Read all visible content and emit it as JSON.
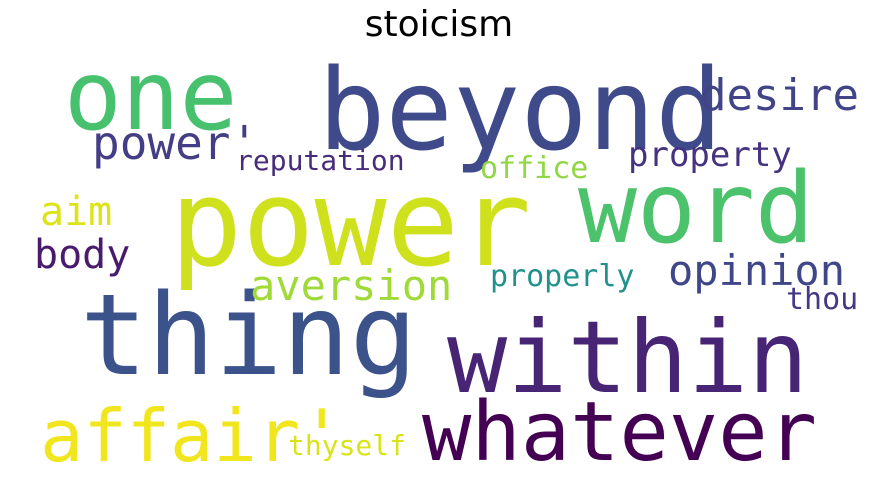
{
  "title": "stoicism",
  "words": [
    {
      "text": "power",
      "color": "#cfe11c"
    },
    {
      "text": "word",
      "color": "#4cc26c"
    },
    {
      "text": "beyond",
      "color": "#3e4a89"
    },
    {
      "text": "one",
      "color": "#47c16e"
    },
    {
      "text": "thing",
      "color": "#3b528b"
    },
    {
      "text": "within",
      "color": "#482475"
    },
    {
      "text": "whatever",
      "color": "#440154"
    },
    {
      "text": "affair'",
      "color": "#f1e51d"
    },
    {
      "text": "desire",
      "color": "#414487"
    },
    {
      "text": "power'",
      "color": "#433e85"
    },
    {
      "text": "reputation",
      "color": "#472c7a"
    },
    {
      "text": "property",
      "color": "#46337f"
    },
    {
      "text": "office",
      "color": "#8fd744"
    },
    {
      "text": "aim",
      "color": "#dde318"
    },
    {
      "text": "body",
      "color": "#481b6d"
    },
    {
      "text": "aversion",
      "color": "#a0da39"
    },
    {
      "text": "opinion",
      "color": "#3f4788"
    },
    {
      "text": "properly",
      "color": "#21918c"
    },
    {
      "text": "thou",
      "color": "#443a83"
    },
    {
      "text": "thyself",
      "color": "#dae319"
    }
  ]
}
